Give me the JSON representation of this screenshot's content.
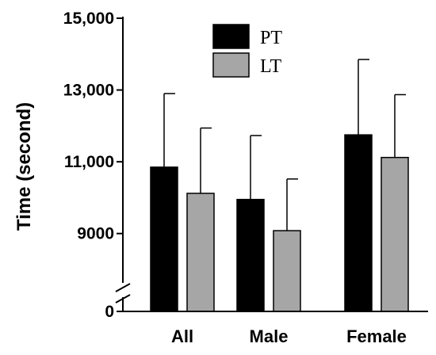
{
  "chart_data": {
    "type": "bar",
    "ylabel": "Time (second)",
    "categories": [
      "All",
      "Male",
      "Female"
    ],
    "series": [
      {
        "name": "PT",
        "color": "#000000",
        "values": [
          10850,
          9950,
          11750
        ],
        "error": [
          2050,
          1780,
          2100
        ]
      },
      {
        "name": "LT",
        "color": "#a6a6a6",
        "values": [
          10120,
          9080,
          11120
        ],
        "error": [
          1820,
          1440,
          1750
        ]
      }
    ],
    "y_break": {
      "low": 0,
      "high": 8000
    },
    "ylim": [
      8000,
      15000
    ],
    "yticks": [
      {
        "value": 9000,
        "label": "9000"
      },
      {
        "value": 11000,
        "label": "11,000"
      },
      {
        "value": 13000,
        "label": "13,000"
      },
      {
        "value": 15000,
        "label": "15,000"
      }
    ],
    "zero_label": "0",
    "legend_position": "top-center"
  }
}
